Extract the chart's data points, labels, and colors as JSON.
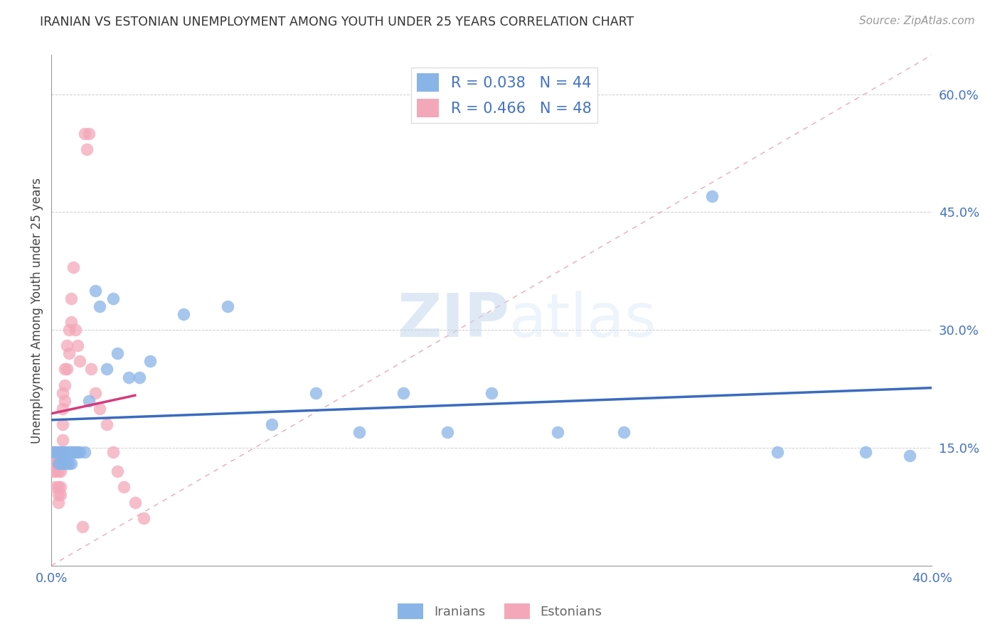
{
  "title": "IRANIAN VS ESTONIAN UNEMPLOYMENT AMONG YOUTH UNDER 25 YEARS CORRELATION CHART",
  "source": "Source: ZipAtlas.com",
  "ylabel": "Unemployment Among Youth under 25 years",
  "xlim": [
    0.0,
    0.4
  ],
  "ylim": [
    0.0,
    0.65
  ],
  "xticks": [
    0.0,
    0.05,
    0.1,
    0.15,
    0.2,
    0.25,
    0.3,
    0.35,
    0.4
  ],
  "yticks": [
    0.0,
    0.15,
    0.3,
    0.45,
    0.6
  ],
  "legend_label1": "Iranians",
  "legend_label2": "Estonians",
  "r_iranian": 0.038,
  "n_iranian": 44,
  "r_estonian": 0.466,
  "n_estonian": 48,
  "color_iranian": "#89b4e8",
  "color_estonian": "#f4a7b9",
  "color_trend_iranian": "#3a6bbf",
  "color_trend_estonian": "#d63a7a",
  "color_diagonal": "#e8a0b0",
  "watermark_zip": "ZIP",
  "watermark_atlas": "atlas",
  "title_color": "#333333",
  "axis_color": "#4472c4",
  "iranians_x": [
    0.001,
    0.002,
    0.003,
    0.003,
    0.004,
    0.004,
    0.005,
    0.005,
    0.006,
    0.006,
    0.007,
    0.007,
    0.008,
    0.008,
    0.009,
    0.009,
    0.01,
    0.011,
    0.012,
    0.013,
    0.015,
    0.017,
    0.02,
    0.022,
    0.025,
    0.028,
    0.03,
    0.035,
    0.04,
    0.045,
    0.06,
    0.08,
    0.1,
    0.12,
    0.14,
    0.16,
    0.18,
    0.2,
    0.23,
    0.26,
    0.3,
    0.33,
    0.37,
    0.39
  ],
  "iranians_y": [
    0.145,
    0.145,
    0.145,
    0.13,
    0.145,
    0.13,
    0.145,
    0.13,
    0.145,
    0.13,
    0.145,
    0.13,
    0.145,
    0.13,
    0.145,
    0.13,
    0.145,
    0.145,
    0.145,
    0.145,
    0.145,
    0.21,
    0.35,
    0.33,
    0.25,
    0.34,
    0.27,
    0.24,
    0.24,
    0.26,
    0.32,
    0.33,
    0.18,
    0.22,
    0.17,
    0.22,
    0.17,
    0.22,
    0.17,
    0.17,
    0.47,
    0.145,
    0.145,
    0.14
  ],
  "estonians_x": [
    0.001,
    0.001,
    0.001,
    0.002,
    0.002,
    0.002,
    0.002,
    0.003,
    0.003,
    0.003,
    0.003,
    0.003,
    0.003,
    0.004,
    0.004,
    0.004,
    0.004,
    0.004,
    0.005,
    0.005,
    0.005,
    0.005,
    0.006,
    0.006,
    0.006,
    0.007,
    0.007,
    0.008,
    0.008,
    0.009,
    0.009,
    0.01,
    0.011,
    0.012,
    0.013,
    0.014,
    0.015,
    0.016,
    0.017,
    0.018,
    0.02,
    0.022,
    0.025,
    0.028,
    0.03,
    0.033,
    0.038,
    0.042
  ],
  "estonians_y": [
    0.145,
    0.13,
    0.12,
    0.145,
    0.13,
    0.12,
    0.1,
    0.145,
    0.13,
    0.12,
    0.1,
    0.09,
    0.08,
    0.145,
    0.13,
    0.12,
    0.1,
    0.09,
    0.22,
    0.2,
    0.18,
    0.16,
    0.25,
    0.23,
    0.21,
    0.28,
    0.25,
    0.3,
    0.27,
    0.34,
    0.31,
    0.38,
    0.3,
    0.28,
    0.26,
    0.05,
    0.55,
    0.53,
    0.55,
    0.25,
    0.22,
    0.2,
    0.18,
    0.145,
    0.12,
    0.1,
    0.08,
    0.06
  ]
}
